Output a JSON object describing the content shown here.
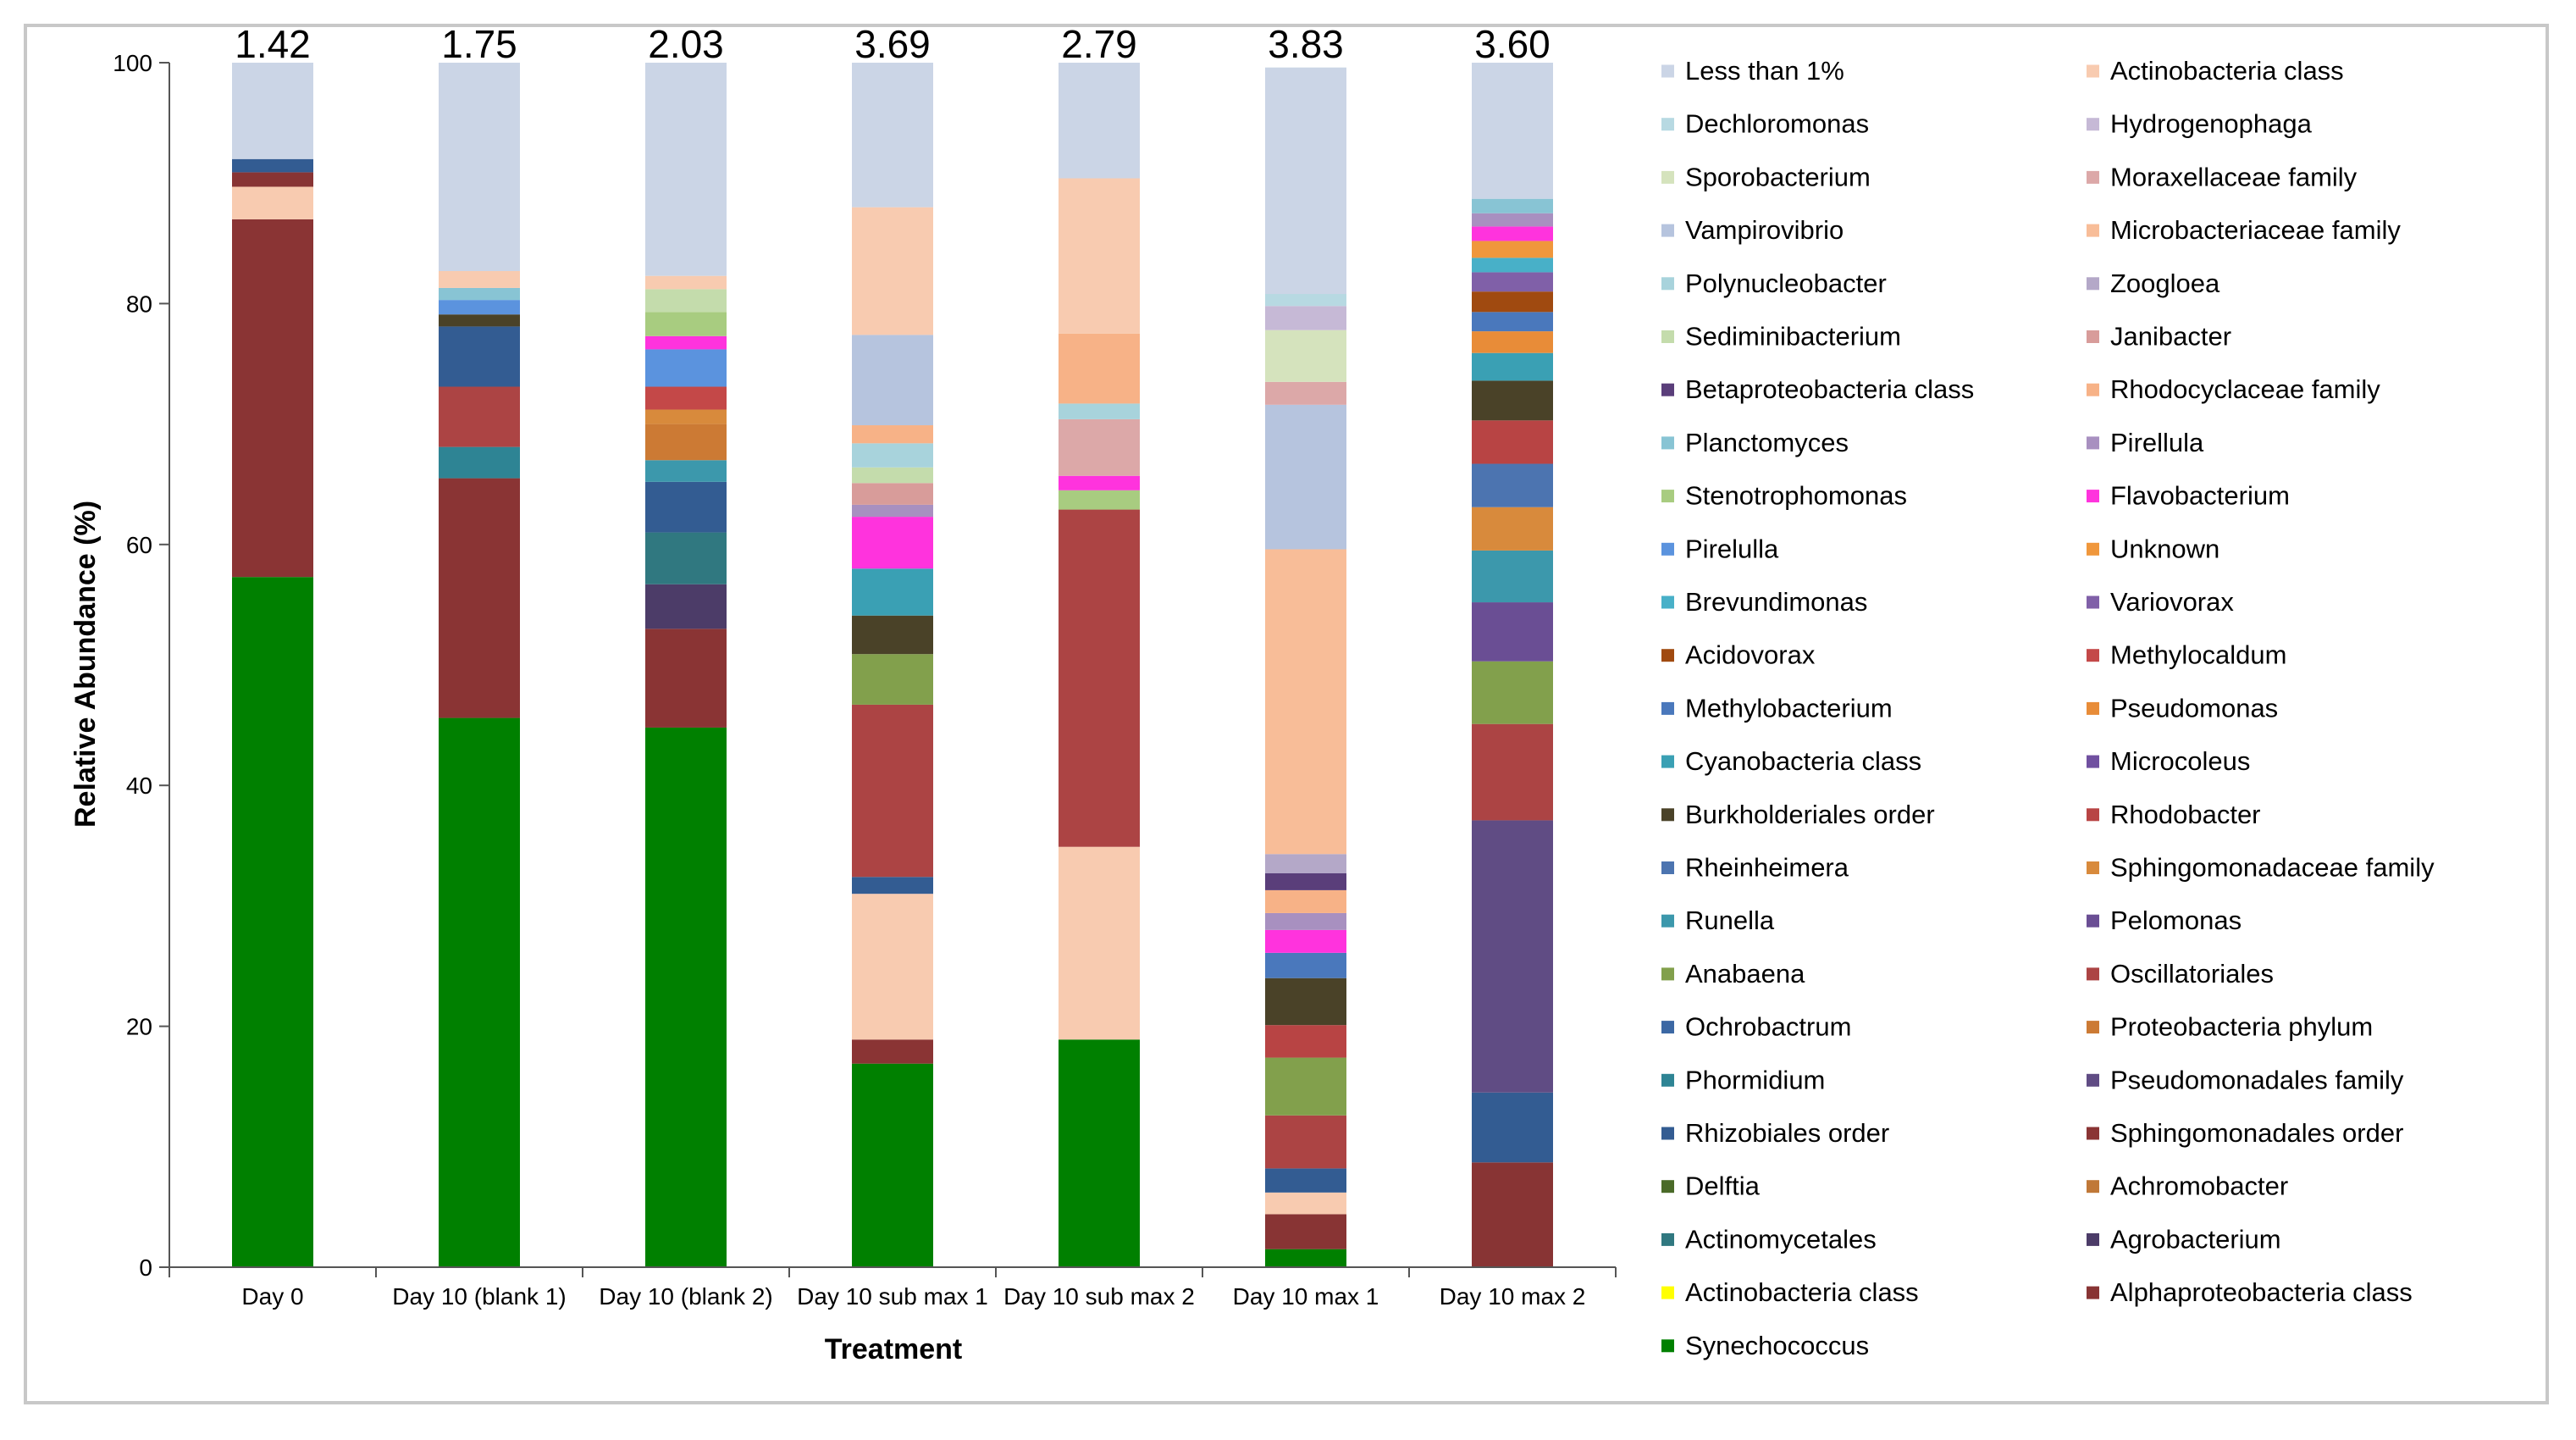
{
  "chart_data": {
    "type": "bar",
    "stacked": true,
    "xlabel": "Treatment",
    "ylabel": "Relative Abundance (%)",
    "ylim": [
      0,
      100
    ],
    "yticks": [
      0,
      20,
      40,
      60,
      80,
      100
    ],
    "grid": false,
    "legend_position": "right",
    "categories": [
      "Day 0",
      "Day 10 (blank 1)",
      "Day 10 (blank 2)",
      "Day 10 sub max 1",
      "Day 10 sub max 2",
      "Day 10 max 1",
      "Day 10 max 2"
    ],
    "top_labels": [
      "1.42",
      "1.75",
      "2.03",
      "3.69",
      "2.79",
      "3.83",
      "3.60"
    ],
    "legend": [
      {
        "name": "Less than 1%",
        "color": "#cbd5e6"
      },
      {
        "name": "Actinobacteria class",
        "color": "#f8cbb0"
      },
      {
        "name": "Dechloromonas",
        "color": "#b7d9e2"
      },
      {
        "name": "Hydrogenophaga",
        "color": "#c6b9d6"
      },
      {
        "name": "Sporobacterium",
        "color": "#d5e3bd"
      },
      {
        "name": "Moraxellaceae family",
        "color": "#dca8a8"
      },
      {
        "name": "Vampirovibrio",
        "color": "#b6c4de"
      },
      {
        "name": "Microbacteriaceae family",
        "color": "#f8bd98"
      },
      {
        "name": "Polynucleobacter",
        "color": "#a8d3dc"
      },
      {
        "name": "Zoogloea",
        "color": "#b4a8c8"
      },
      {
        "name": "Sediminibacterium",
        "color": "#c4dcac"
      },
      {
        "name": "Janibacter",
        "color": "#d89c9a"
      },
      {
        "name": "Betaproteobacteria class",
        "color": "#5a3e7a"
      },
      {
        "name": "Rhodocyclaceae family",
        "color": "#f7b287"
      },
      {
        "name": "Planctomyces",
        "color": "#88c4d4"
      },
      {
        "name": "Pirellula",
        "color": "#a890c0"
      },
      {
        "name": "Stenotrophomonas",
        "color": "#a8cc80"
      },
      {
        "name": "Flavobacterium",
        "color": "#ff33dd"
      },
      {
        "name": "Pirelulla",
        "color": "#5b93de"
      },
      {
        "name": "Unknown",
        "color": "#f0973c"
      },
      {
        "name": "Brevundimonas",
        "color": "#48b0c8"
      },
      {
        "name": "Variovorax",
        "color": "#8060a8"
      },
      {
        "name": "Acidovorax",
        "color": "#a04a10"
      },
      {
        "name": "Methylocaldum",
        "color": "#c44848"
      },
      {
        "name": "Methylobacterium",
        "color": "#4a78bc"
      },
      {
        "name": "Pseudomonas",
        "color": "#e88c38"
      },
      {
        "name": "Cyanobacteria class",
        "color": "#3aa0b4"
      },
      {
        "name": "Microcoleus",
        "color": "#7050a0"
      },
      {
        "name": "Burkholderiales order",
        "color": "#4a4228"
      },
      {
        "name": "Rhodobacter",
        "color": "#b84444"
      },
      {
        "name": "Rheinheimera",
        "color": "#4c74b0"
      },
      {
        "name": "Sphingomonadaceae family",
        "color": "#d88a3c"
      },
      {
        "name": "Runella",
        "color": "#3c98ac"
      },
      {
        "name": "Pelomonas",
        "color": "#6a4e94"
      },
      {
        "name": "Anabaena",
        "color": "#82a04c"
      },
      {
        "name": "Oscillatoriales",
        "color": "#ac4444"
      },
      {
        "name": "Ochrobactrum",
        "color": "#3c68a4"
      },
      {
        "name": "Proteobacteria phylum",
        "color": "#cc7a34"
      },
      {
        "name": "Phormidium",
        "color": "#2e8494"
      },
      {
        "name": "Pseudomonadales family",
        "color": "#604c84"
      },
      {
        "name": "Rhizobiales order",
        "color": "#335c92"
      },
      {
        "name": "Sphingomonadales order",
        "color": "#8a3434"
      },
      {
        "name": "Delftia",
        "color": "#4a6a28"
      },
      {
        "name": "Achromobacter",
        "color": "#c07838"
      },
      {
        "name": "Actinomycetales",
        "color": "#307880"
      },
      {
        "name": "Agrobacterium",
        "color": "#4c3c68"
      },
      {
        "name": "Actinobacteria class",
        "color": "#ffff00"
      },
      {
        "name": "Alphaproteobacteria class",
        "color": "#883434"
      },
      {
        "name": "Synechococcus",
        "color": "#008000"
      }
    ],
    "series_by_category": [
      [
        {
          "name": "Synechococcus",
          "value": 57.3
        },
        {
          "name": "Sphingomonadales order",
          "value": 29.7
        },
        {
          "name": "Actinobacteria class",
          "value": 2.7
        },
        {
          "name": "Alphaproteobacteria class",
          "value": 1.2
        },
        {
          "name": "Rhizobiales order",
          "value": 1.1
        },
        {
          "name": "Less than 1%",
          "value": 8.0
        }
      ],
      [
        {
          "name": "Synechococcus",
          "value": 45.6
        },
        {
          "name": "Sphingomonadales order",
          "value": 19.9
        },
        {
          "name": "Phormidium",
          "value": 2.6
        },
        {
          "name": "Oscillatoriales",
          "value": 5.0
        },
        {
          "name": "Rhizobiales order",
          "value": 5.0
        },
        {
          "name": "Burkholderiales order",
          "value": 1.0
        },
        {
          "name": "Pirelulla",
          "value": 1.2
        },
        {
          "name": "Planctomyces",
          "value": 1.0
        },
        {
          "name": "Actinobacteria class",
          "value": 1.4
        },
        {
          "name": "Less than 1%",
          "value": 17.3
        }
      ],
      [
        {
          "name": "Synechococcus",
          "value": 44.8
        },
        {
          "name": "Sphingomonadales order",
          "value": 8.2
        },
        {
          "name": "Agrobacterium",
          "value": 3.7
        },
        {
          "name": "Actinomycetales",
          "value": 4.3
        },
        {
          "name": "Rhizobiales order",
          "value": 4.2
        },
        {
          "name": "Runella",
          "value": 1.8
        },
        {
          "name": "Proteobacteria phylum",
          "value": 3.0
        },
        {
          "name": "Sphingomonadaceae family",
          "value": 1.2
        },
        {
          "name": "Methylocaldum",
          "value": 1.9
        },
        {
          "name": "Pirelulla",
          "value": 3.1
        },
        {
          "name": "Flavobacterium",
          "value": 1.1
        },
        {
          "name": "Stenotrophomonas",
          "value": 2.0
        },
        {
          "name": "Sediminibacterium",
          "value": 1.9
        },
        {
          "name": "Actinobacteria class",
          "value": 1.1
        },
        {
          "name": "Less than 1%",
          "value": 17.7
        }
      ],
      [
        {
          "name": "Synechococcus",
          "value": 16.9
        },
        {
          "name": "Sphingomonadales order",
          "value": 2.0
        },
        {
          "name": "Actinobacteria class",
          "value": 12.1
        },
        {
          "name": "Rhizobiales order",
          "value": 1.4
        },
        {
          "name": "Oscillatoriales",
          "value": 14.3
        },
        {
          "name": "Anabaena",
          "value": 4.2
        },
        {
          "name": "Burkholderiales order",
          "value": 3.2
        },
        {
          "name": "Cyanobacteria class",
          "value": 3.9
        },
        {
          "name": "Flavobacterium",
          "value": 4.3
        },
        {
          "name": "Pirellula",
          "value": 1.0
        },
        {
          "name": "Janibacter",
          "value": 1.8
        },
        {
          "name": "Sediminibacterium",
          "value": 1.3
        },
        {
          "name": "Polynucleobacter",
          "value": 2.0
        },
        {
          "name": "Rhodocyclaceae family",
          "value": 1.5
        },
        {
          "name": "Vampirovibrio",
          "value": 7.5
        },
        {
          "name": "Actinobacteria class",
          "value": 10.6
        },
        {
          "name": "Less than 1%",
          "value": 12.0
        }
      ],
      [
        {
          "name": "Synechococcus",
          "value": 18.9
        },
        {
          "name": "Actinobacteria class",
          "value": 16.0
        },
        {
          "name": "Oscillatoriales",
          "value": 28.0
        },
        {
          "name": "Stenotrophomonas",
          "value": 1.6
        },
        {
          "name": "Flavobacterium",
          "value": 1.2
        },
        {
          "name": "Moraxellaceae family",
          "value": 4.7
        },
        {
          "name": "Polynucleobacter",
          "value": 1.3
        },
        {
          "name": "Rhodocyclaceae family",
          "value": 5.8
        },
        {
          "name": "Actinobacteria class",
          "value": 12.9
        },
        {
          "name": "Less than 1%",
          "value": 9.6
        }
      ],
      [
        {
          "name": "Synechococcus",
          "value": 1.5
        },
        {
          "name": "Alphaproteobacteria class",
          "value": 2.9
        },
        {
          "name": "Actinobacteria class",
          "value": 1.8
        },
        {
          "name": "Rhizobiales order",
          "value": 2.0
        },
        {
          "name": "Oscillatoriales",
          "value": 4.4
        },
        {
          "name": "Anabaena",
          "value": 4.8
        },
        {
          "name": "Rhodobacter",
          "value": 2.7
        },
        {
          "name": "Burkholderiales order",
          "value": 3.9
        },
        {
          "name": "Methylobacterium",
          "value": 2.1
        },
        {
          "name": "Flavobacterium",
          "value": 1.9
        },
        {
          "name": "Pirellula",
          "value": 1.4
        },
        {
          "name": "Rhodocyclaceae family",
          "value": 1.9
        },
        {
          "name": "Betaproteobacteria class",
          "value": 1.4
        },
        {
          "name": "Zoogloea",
          "value": 1.6
        },
        {
          "name": "Microbacteriaceae family",
          "value": 25.3
        },
        {
          "name": "Vampirovibrio",
          "value": 12.0
        },
        {
          "name": "Moraxellaceae family",
          "value": 1.9
        },
        {
          "name": "Sporobacterium",
          "value": 4.3
        },
        {
          "name": "Hydrogenophaga",
          "value": 2.0
        },
        {
          "name": "Dechloromonas",
          "value": 1.0
        },
        {
          "name": "Less than 1%",
          "value": 18.8
        }
      ],
      [
        {
          "name": "Alphaproteobacteria class",
          "value": 8.7
        },
        {
          "name": "Rhizobiales order",
          "value": 5.8
        },
        {
          "name": "Pseudomonadales family",
          "value": 22.6
        },
        {
          "name": "Oscillatoriales",
          "value": 8.0
        },
        {
          "name": "Anabaena",
          "value": 5.2
        },
        {
          "name": "Pelomonas",
          "value": 4.9
        },
        {
          "name": "Runella",
          "value": 4.3
        },
        {
          "name": "Sphingomonadaceae family",
          "value": 3.6
        },
        {
          "name": "Rheinheimera",
          "value": 3.6
        },
        {
          "name": "Rhodobacter",
          "value": 3.6
        },
        {
          "name": "Burkholderiales order",
          "value": 3.3
        },
        {
          "name": "Cyanobacteria class",
          "value": 2.3
        },
        {
          "name": "Pseudomonas",
          "value": 1.8
        },
        {
          "name": "Methylobacterium",
          "value": 1.6
        },
        {
          "name": "Acidovorax",
          "value": 1.7
        },
        {
          "name": "Variovorax",
          "value": 1.6
        },
        {
          "name": "Brevundimonas",
          "value": 1.2
        },
        {
          "name": "Unknown",
          "value": 1.4
        },
        {
          "name": "Flavobacterium",
          "value": 1.2
        },
        {
          "name": "Pirellula",
          "value": 1.1
        },
        {
          "name": "Planctomyces",
          "value": 1.2
        },
        {
          "name": "Less than 1%",
          "value": 11.3
        }
      ]
    ]
  }
}
